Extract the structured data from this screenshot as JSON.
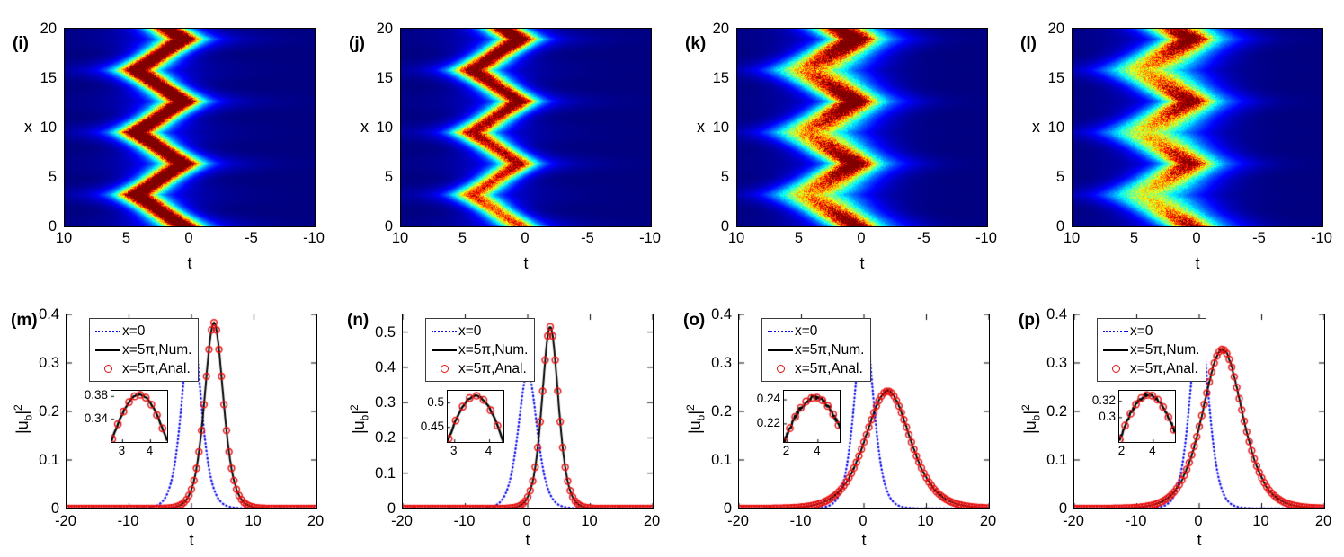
{
  "figure_note": "Soliton evolution figure: top row heatmaps of |u_b|^2 in (t,x) plane, bottom row profiles at x=0 and x=5pi",
  "colors": {
    "heat_background": "#000090",
    "blue_curve": "#0A0AEE",
    "black_curve": "#000000",
    "red_marker": "#E81010"
  },
  "chart_data": [
    {
      "type": "heatmap",
      "panel": "(i)",
      "xlabel": "t",
      "ylabel": "x",
      "colormap": "jet",
      "x_axis": {
        "range": [
          10,
          -10
        ],
        "ticks": [
          10,
          5,
          0,
          -5,
          -10
        ]
      },
      "y_axis": {
        "range": [
          0,
          20
        ],
        "ticks": [
          0,
          5,
          10,
          15,
          20
        ]
      },
      "soliton_path": {
        "shape": "zigzag",
        "t_min": 0.5,
        "t_max": 4.3,
        "x_period": 6.33
      },
      "render": {
        "amp_base": 1.0,
        "vertex_dim": 0.0,
        "amp_growth": 0.0,
        "width_base": 1.15,
        "width_spread": 0.0,
        "pedestal": 0.3,
        "ped_width": 2.2,
        "vertex_streak": 0.07,
        "trail": 0.0,
        "noise": 0.32,
        "seed": 3
      }
    },
    {
      "type": "heatmap",
      "panel": "(j)",
      "xlabel": "t",
      "ylabel": "x",
      "colormap": "jet",
      "x_axis": {
        "range": [
          10,
          -10
        ],
        "ticks": [
          10,
          5,
          0,
          -5,
          -10
        ]
      },
      "y_axis": {
        "range": [
          0,
          20
        ],
        "ticks": [
          0,
          5,
          10,
          15,
          20
        ]
      },
      "soliton_path": {
        "shape": "zigzag",
        "t_min": 0.5,
        "t_max": 4.3,
        "x_period": 6.33
      },
      "render": {
        "amp_base": 1.0,
        "vertex_dim": 0.08,
        "amp_growth": 0.38,
        "width_base": 1.15,
        "width_spread": 0.15,
        "pedestal": 0.28,
        "ped_width": 2.2,
        "vertex_streak": 0.06,
        "trail": 0.0,
        "noise": 0.32,
        "seed": 5
      }
    },
    {
      "type": "heatmap",
      "panel": "(k)",
      "xlabel": "t",
      "ylabel": "x",
      "colormap": "jet",
      "x_axis": {
        "range": [
          10,
          -10
        ],
        "ticks": [
          10,
          5,
          0,
          -5,
          -10
        ]
      },
      "y_axis": {
        "range": [
          0,
          20
        ],
        "ticks": [
          0,
          5,
          10,
          15,
          20
        ]
      },
      "soliton_path": {
        "shape": "zigzag",
        "t_min": 0.5,
        "t_max": 4.3,
        "x_period": 6.33
      },
      "render": {
        "amp_base": 1.05,
        "vertex_dim": 0.5,
        "amp_growth": 0.15,
        "width_base": 1.35,
        "width_spread": 1.2,
        "pedestal": 0.3,
        "ped_width": 2.6,
        "vertex_streak": 0.05,
        "trail": 0.06,
        "noise": 0.4,
        "seed": 7
      }
    },
    {
      "type": "heatmap",
      "panel": "(l)",
      "xlabel": "t",
      "ylabel": "x",
      "colormap": "jet",
      "x_axis": {
        "range": [
          10,
          -10
        ],
        "ticks": [
          10,
          5,
          0,
          -5,
          -10
        ]
      },
      "y_axis": {
        "range": [
          0,
          20
        ],
        "ticks": [
          0,
          5,
          10,
          15,
          20
        ]
      },
      "soliton_path": {
        "shape": "zigzag",
        "t_min": 0.5,
        "t_max": 4.3,
        "x_period": 6.33
      },
      "render": {
        "amp_base": 0.92,
        "vertex_dim": 0.45,
        "amp_growth": 0.2,
        "width_base": 1.5,
        "width_spread": 1.3,
        "pedestal": 0.28,
        "ped_width": 2.8,
        "vertex_streak": 0.05,
        "trail": 0.06,
        "noise": 0.4,
        "seed": 9
      }
    },
    {
      "type": "line",
      "panel": "(m)",
      "xlabel": "t",
      "ylabel": "|u_b|^2",
      "ylabel_parts": {
        "p1": "|u",
        "sub": "b",
        "p2": "|",
        "sup": "2"
      },
      "x_axis": {
        "range": [
          -20,
          20
        ],
        "ticks": [
          -20,
          -10,
          0,
          10,
          20
        ]
      },
      "y_axis": {
        "range": [
          0,
          0.4
        ],
        "ticks": [
          0,
          0.1,
          0.2,
          0.3,
          0.4
        ]
      },
      "series": [
        {
          "name": "x=0",
          "shape": "sech2",
          "peak": 0.385,
          "center": 0,
          "width": 2.0,
          "style": "dotted",
          "color": "#0A0AEE",
          "noise": 0
        },
        {
          "name": "x=5π,Num.",
          "shape": "sech2",
          "peak": 0.383,
          "center": 3.6,
          "width": 2.0,
          "style": "solid",
          "color": "#000000",
          "noise": 0.0012
        },
        {
          "name": "x=5π,Anal.",
          "shape": "sech2",
          "peak": 0.383,
          "center": 3.6,
          "width": 2.0,
          "style": "circle",
          "color": "#E81010",
          "marker_step": 0.4
        }
      ],
      "inset": {
        "x_range": [
          2.6,
          4.6
        ],
        "y_range": [
          0.3,
          0.39
        ],
        "x_ticks": [
          3,
          4
        ],
        "y_ticks": [
          0.34,
          0.38
        ],
        "marker_step": 0.2
      },
      "seed": 11
    },
    {
      "type": "line",
      "panel": "(n)",
      "xlabel": "t",
      "ylabel": "|u_b|^2",
      "ylabel_parts": {
        "p1": "|u",
        "sub": "b",
        "p2": "|",
        "sup": "2"
      },
      "x_axis": {
        "range": [
          -20,
          20
        ],
        "ticks": [
          -20,
          -10,
          0,
          10,
          20
        ]
      },
      "y_axis": {
        "range": [
          0,
          0.55
        ],
        "ticks": [
          0,
          0.1,
          0.2,
          0.3,
          0.4,
          0.5
        ]
      },
      "series": [
        {
          "name": "x=0",
          "shape": "sech2",
          "peak": 0.385,
          "center": 0,
          "width": 2.0,
          "style": "dotted",
          "color": "#0A0AEE",
          "noise": 0
        },
        {
          "name": "x=5π,Num.",
          "shape": "sech2",
          "peak": 0.515,
          "center": 3.6,
          "width": 1.75,
          "style": "solid",
          "color": "#000000",
          "noise": 0.002
        },
        {
          "name": "x=5π,Anal.",
          "shape": "sech2",
          "peak": 0.515,
          "center": 3.6,
          "width": 1.75,
          "style": "circle",
          "color": "#E81010",
          "marker_step": 0.4
        }
      ],
      "inset": {
        "x_range": [
          2.8,
          4.4
        ],
        "y_range": [
          0.42,
          0.525
        ],
        "x_ticks": [
          3,
          4
        ],
        "y_ticks": [
          0.45,
          0.5
        ],
        "marker_step": 0.2
      },
      "seed": 13
    },
    {
      "type": "line",
      "panel": "(o)",
      "xlabel": "t",
      "ylabel": "|u_b|^2",
      "ylabel_parts": {
        "p1": "|u",
        "sub": "b",
        "p2": "|",
        "sup": "2"
      },
      "x_axis": {
        "range": [
          -20,
          20
        ],
        "ticks": [
          -20,
          -10,
          0,
          10,
          20
        ]
      },
      "y_axis": {
        "range": [
          0,
          0.4
        ],
        "ticks": [
          0,
          0.1,
          0.2,
          0.3,
          0.4
        ]
      },
      "series": [
        {
          "name": "x=0",
          "shape": "sech2",
          "peak": 0.385,
          "center": 0,
          "width": 2.0,
          "style": "dotted",
          "color": "#0A0AEE",
          "noise": 0
        },
        {
          "name": "x=5π,Num.",
          "shape": "sech2",
          "peak": 0.242,
          "center": 3.8,
          "width": 4.8,
          "style": "solid",
          "color": "#000000",
          "noise": 0.0018
        },
        {
          "name": "x=5π,Anal.",
          "shape": "sech2",
          "peak": 0.242,
          "center": 3.8,
          "width": 4.8,
          "style": "circle",
          "color": "#E81010",
          "marker_step": 0.4
        }
      ],
      "inset": {
        "x_range": [
          1.8,
          5.4
        ],
        "y_range": [
          0.205,
          0.2475
        ],
        "x_ticks": [
          2,
          4
        ],
        "y_ticks": [
          0.22,
          0.24
        ],
        "marker_step": 0.35
      },
      "seed": 17
    },
    {
      "type": "line",
      "panel": "(p)",
      "xlabel": "t",
      "ylabel": "|u_b|^2",
      "ylabel_parts": {
        "p1": "|u",
        "sub": "b",
        "p2": "|",
        "sup": "2"
      },
      "x_axis": {
        "range": [
          -20,
          20
        ],
        "ticks": [
          -20,
          -10,
          0,
          10,
          20
        ]
      },
      "y_axis": {
        "range": [
          0,
          0.4
        ],
        "ticks": [
          0,
          0.1,
          0.2,
          0.3,
          0.4
        ]
      },
      "series": [
        {
          "name": "x=0",
          "shape": "sech2",
          "peak": 0.385,
          "center": 0,
          "width": 2.0,
          "style": "dotted",
          "color": "#0A0AEE",
          "noise": 0
        },
        {
          "name": "x=5π,Num.",
          "shape": "sech2",
          "peak": 0.328,
          "center": 3.7,
          "width": 4.3,
          "style": "solid",
          "color": "#000000",
          "noise": 0.0022
        },
        {
          "name": "x=5π,Anal.",
          "shape": "sech2",
          "peak": 0.328,
          "center": 3.7,
          "width": 4.3,
          "style": "circle",
          "color": "#E81010",
          "marker_step": 0.4
        }
      ],
      "inset": {
        "x_range": [
          1.8,
          5.4
        ],
        "y_range": [
          0.27,
          0.333
        ],
        "x_ticks": [
          2,
          4
        ],
        "y_ticks": [
          0.3,
          0.32
        ],
        "marker_step": 0.35
      },
      "seed": 19
    }
  ]
}
